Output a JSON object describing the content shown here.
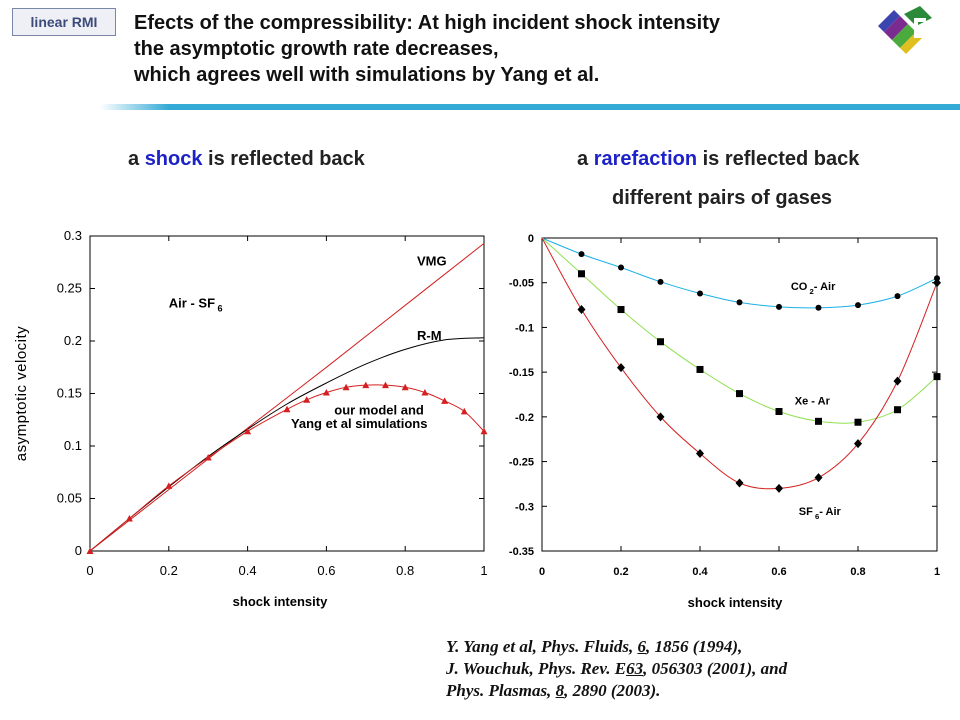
{
  "tag": "linear RMI",
  "title": {
    "line1": "Efects of the compressibility: At high incident shock intensity",
    "line2": "the asymptotic growth rate decreases,",
    "line3": "which agrees well with simulations by Yang et al."
  },
  "subtitles": {
    "left": {
      "pre": "a ",
      "hl": "shock",
      "post": " is reflected back"
    },
    "right": {
      "pre": "a ",
      "hl": "rarefaction",
      "post": " is reflected back"
    },
    "right2": "different pairs of gases"
  },
  "colors": {
    "accent_rule": "#34aad6",
    "highlight": "#1c22c8",
    "red": "#d42020",
    "black": "#000000",
    "cyan": "#1ab0e8",
    "green": "#8fe050"
  },
  "chart_data": [
    {
      "type": "line",
      "xlabel": "shock intensity",
      "ylabel": "asymptotic velocity",
      "xlim": [
        0,
        1
      ],
      "ylim": [
        0,
        0.3
      ],
      "xticks": [
        0,
        0.2,
        0.4,
        0.6,
        0.8,
        1
      ],
      "xticklabels": [
        "0",
        "0.2",
        "0.4",
        "0.6",
        "0.8",
        "1"
      ],
      "yticks": [
        0,
        0.05,
        0.1,
        0.15,
        0.2,
        0.25,
        0.3
      ],
      "yticklabels": [
        "0",
        "0.05",
        "0.1",
        "0.15",
        "0.2",
        "0.25",
        "0.3"
      ],
      "annotations": [
        {
          "label": "VMG",
          "at": [
            0.83,
            0.272
          ]
        },
        {
          "label": "Air - SF",
          "sub": "6",
          "at": [
            0.2,
            0.232
          ]
        },
        {
          "label": "R-M",
          "at": [
            0.83,
            0.201
          ]
        },
        {
          "label": "our model and",
          "at": [
            0.62,
            0.13
          ]
        },
        {
          "label": "Yang et al simulations",
          "at": [
            0.51,
            0.117
          ]
        }
      ],
      "series": [
        {
          "key": "vmg",
          "color": "#d42020",
          "x": [
            0,
            0.2,
            0.4,
            0.6,
            0.8,
            1
          ],
          "y": [
            0,
            0.0585,
            0.117,
            0.175,
            0.234,
            0.293
          ]
        },
        {
          "key": "rm",
          "color": "#000000",
          "x": [
            0,
            0.1,
            0.2,
            0.3,
            0.4,
            0.5,
            0.6,
            0.7,
            0.8,
            0.9,
            1
          ],
          "y": [
            0,
            0.031,
            0.061,
            0.09,
            0.116,
            0.14,
            0.16,
            0.178,
            0.192,
            0.201,
            0.203
          ]
        },
        {
          "key": "model",
          "color": "#d42020",
          "marker": "triangle",
          "x": [
            0,
            0.1,
            0.2,
            0.3,
            0.4,
            0.5,
            0.55,
            0.6,
            0.65,
            0.7,
            0.75,
            0.8,
            0.85,
            0.9,
            0.95,
            1
          ],
          "y": [
            0,
            0.031,
            0.062,
            0.089,
            0.114,
            0.135,
            0.144,
            0.151,
            0.156,
            0.158,
            0.158,
            0.156,
            0.151,
            0.143,
            0.133,
            0.114
          ]
        }
      ]
    },
    {
      "type": "line",
      "xlabel": "shock intensity",
      "xlim": [
        0,
        1
      ],
      "ylim": [
        -0.35,
        0
      ],
      "xticks": [
        0,
        0.2,
        0.4,
        0.6,
        0.8,
        1
      ],
      "xticklabels": [
        "0",
        "0.2",
        "0.4",
        "0.6",
        "0.8",
        "1"
      ],
      "yticks": [
        0,
        -0.05,
        -0.1,
        -0.15,
        -0.2,
        -0.25,
        -0.3,
        -0.35
      ],
      "yticklabels": [
        "0",
        "-0.05",
        "-0.1",
        "-0.15",
        "-0.2",
        "-0.25",
        "-0.3",
        "-0.35"
      ],
      "annotations": [
        {
          "label": "CO",
          "sub": "2",
          "post": "- Air",
          "at": [
            0.63,
            -0.058
          ]
        },
        {
          "label": "Xe - Ar",
          "at": [
            0.64,
            -0.186
          ]
        },
        {
          "label": "SF",
          "sub": "6",
          "post": "- Air",
          "at": [
            0.65,
            -0.31
          ]
        }
      ],
      "series": [
        {
          "key": "co2_air",
          "color": "#1ab0e8",
          "marker": "circle",
          "x": [
            0,
            0.1,
            0.2,
            0.3,
            0.4,
            0.5,
            0.6,
            0.7,
            0.8,
            0.9,
            1
          ],
          "y": [
            0,
            -0.018,
            -0.033,
            -0.049,
            -0.062,
            -0.072,
            -0.077,
            -0.078,
            -0.075,
            -0.065,
            -0.045
          ]
        },
        {
          "key": "xe_ar",
          "color": "#8fe050",
          "marker": "square",
          "x": [
            0,
            0.1,
            0.2,
            0.3,
            0.4,
            0.5,
            0.6,
            0.7,
            0.8,
            0.9,
            1
          ],
          "y": [
            0,
            -0.04,
            -0.08,
            -0.116,
            -0.147,
            -0.174,
            -0.194,
            -0.205,
            -0.206,
            -0.192,
            -0.155
          ]
        },
        {
          "key": "sf6_air",
          "color": "#d42020",
          "marker": "diamond",
          "x": [
            0,
            0.1,
            0.2,
            0.3,
            0.4,
            0.5,
            0.6,
            0.7,
            0.8,
            0.9,
            1
          ],
          "y": [
            0,
            -0.08,
            -0.145,
            -0.2,
            -0.241,
            -0.274,
            -0.28,
            -0.268,
            -0.23,
            -0.16,
            -0.05
          ]
        }
      ]
    }
  ],
  "references": {
    "l1": {
      "a": "Y. Yang et al, Phys. Fluids, ",
      "u": "6",
      "b": ", 1856 (1994),"
    },
    "l2": {
      "a": "J. Wouchuk,  Phys. Rev. E",
      "u": "63",
      "b": ", 056303 (2001), and"
    },
    "l3": {
      "a": "Phys. Plasmas, ",
      "u": "8",
      "b": ", 2890 (2003)."
    }
  }
}
